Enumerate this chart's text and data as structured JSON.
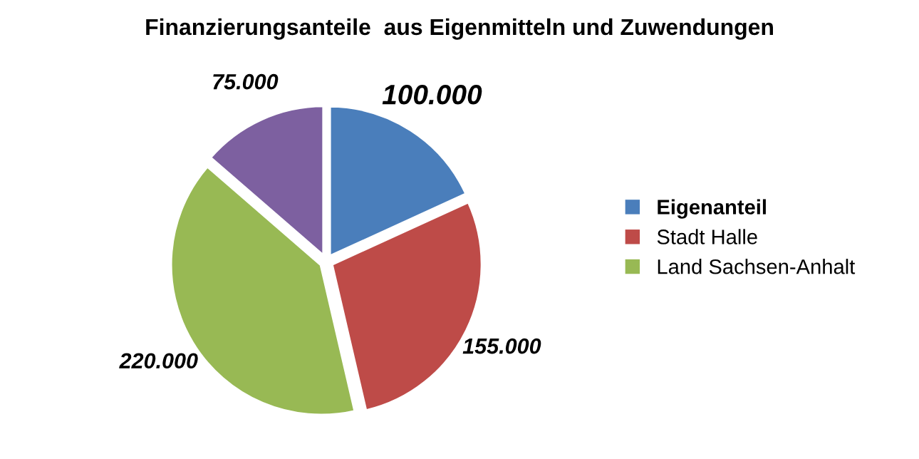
{
  "chart_data": {
    "type": "pie",
    "title": "Finanzierungsanteile  aus Eigenmitteln und Zuwendungen",
    "categories": [
      "Eigenanteil",
      "Stadt Halle",
      "Land Sachsen-Anhalt",
      null
    ],
    "values": [
      100000,
      155000,
      220000,
      75000
    ],
    "value_labels": [
      "100.000",
      "155.000",
      "220.000",
      "75.000"
    ],
    "colors": [
      "#4a7ebb",
      "#be4b48",
      "#98b954",
      "#7d60a0"
    ],
    "legend": "right"
  }
}
